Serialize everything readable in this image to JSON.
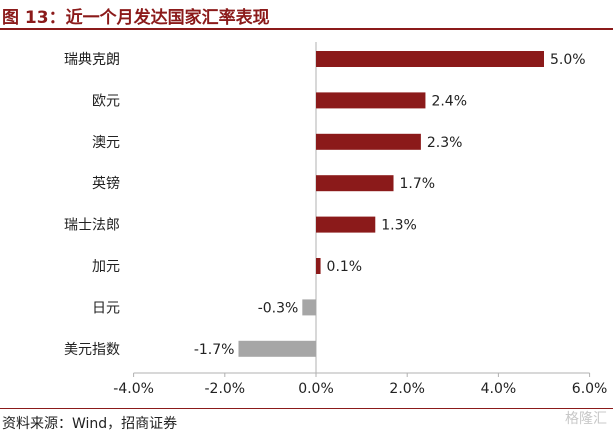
{
  "header": {
    "title": "图 13：近一个月发达国家汇率表现"
  },
  "footer": {
    "source": "资料来源：Wind，招商证券",
    "watermark": "格隆汇"
  },
  "colors": {
    "positive": "#8b1a1a",
    "negative": "#a6a6a6",
    "title": "#8b1a1a"
  },
  "chart_data": {
    "type": "bar",
    "orientation": "horizontal",
    "categories": [
      "瑞典克朗",
      "欧元",
      "澳元",
      "英镑",
      "瑞士法郎",
      "加元",
      "日元",
      "美元指数"
    ],
    "values": [
      5.0,
      2.4,
      2.3,
      1.7,
      1.3,
      0.1,
      -0.3,
      -1.7
    ],
    "data_labels": [
      "5.0%",
      "2.4%",
      "2.3%",
      "1.7%",
      "1.3%",
      "0.1%",
      "-0.3%",
      "-1.7%"
    ],
    "xlim": [
      -4.0,
      6.0
    ],
    "xticks": [
      -4.0,
      -2.0,
      0.0,
      2.0,
      4.0,
      6.0
    ],
    "xtick_labels": [
      "-4.0%",
      "-2.0%",
      "0.0%",
      "2.0%",
      "4.0%",
      "6.0%"
    ],
    "grid": false,
    "legend": "none"
  }
}
